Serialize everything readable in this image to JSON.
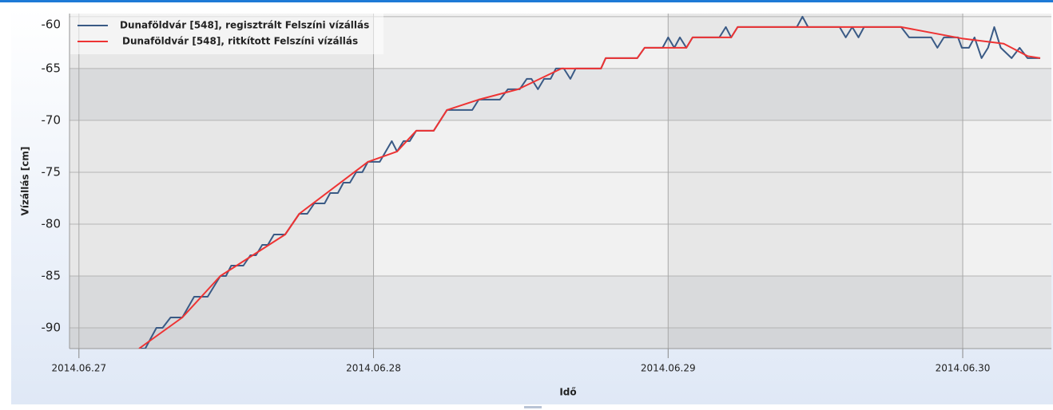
{
  "chart_data": {
    "type": "line",
    "xlabel": "Idő",
    "ylabel": "Vízállás [cm]",
    "xlim": [
      -0.032,
      3.301
    ],
    "ylim": [
      -92,
      -59.7
    ],
    "xticks": [
      {
        "value": 0,
        "label": "2014.06.27"
      },
      {
        "value": 1,
        "label": "2014.06.28"
      },
      {
        "value": 2,
        "label": "2014.06.29"
      },
      {
        "value": 3,
        "label": "2014.06.30"
      }
    ],
    "yticks": [
      -90,
      -85,
      -80,
      -75,
      -70,
      -65,
      -60
    ],
    "grid": true,
    "legend": "upper left",
    "series": [
      {
        "name": "Dunaföldvár [548], regisztrált Felszíni vízállás",
        "color": "#3a5a85",
        "x": [
          0.204,
          0.225,
          0.263,
          0.284,
          0.311,
          0.351,
          0.391,
          0.437,
          0.48,
          0.499,
          0.517,
          0.558,
          0.582,
          0.601,
          0.622,
          0.641,
          0.662,
          0.7,
          0.748,
          0.775,
          0.799,
          0.834,
          0.853,
          0.879,
          0.898,
          0.92,
          0.941,
          0.962,
          0.981,
          1.021,
          1.062,
          1.08,
          1.102,
          1.123,
          1.145,
          1.204,
          1.249,
          1.335,
          1.357,
          1.429,
          1.456,
          1.496,
          1.52,
          1.536,
          1.558,
          1.579,
          1.601,
          1.619,
          1.646,
          1.668,
          1.686,
          1.772,
          1.788,
          1.895,
          1.92,
          1.981,
          2.0,
          2.021,
          2.04,
          2.062,
          2.083,
          2.174,
          2.196,
          2.214,
          2.236,
          2.437,
          2.456,
          2.475,
          2.582,
          2.603,
          2.625,
          2.646,
          2.665,
          2.791,
          2.818,
          2.893,
          2.914,
          2.936,
          2.984,
          2.997,
          3.021,
          3.04,
          3.064,
          3.086,
          3.107,
          3.129,
          3.166,
          3.193,
          3.22,
          3.263
        ],
        "values": [
          -92,
          -92,
          -90,
          -90,
          -89,
          -89,
          -87,
          -87,
          -85,
          -85,
          -84,
          -84,
          -83,
          -83,
          -82,
          -82,
          -81,
          -81,
          -79,
          -79,
          -78,
          -78,
          -77,
          -77,
          -76,
          -76,
          -75,
          -75,
          -74,
          -74,
          -72,
          -73,
          -72,
          -72,
          -71,
          -71,
          -69,
          -69,
          -68,
          -68,
          -67,
          -67,
          -66,
          -66,
          -67,
          -66,
          -66,
          -65,
          -65,
          -66,
          -65,
          -65,
          -64,
          -64,
          -63,
          -63,
          -62,
          -63,
          -62,
          -63,
          -62,
          -62,
          -61,
          -62,
          -61,
          -61,
          -60,
          -61,
          -61,
          -62,
          -61,
          -62,
          -61,
          -61,
          -62,
          -62,
          -63,
          -62,
          -62,
          -63,
          -63,
          -62,
          -64,
          -63,
          -61,
          -63,
          -64,
          -63,
          -64,
          -64
        ]
      },
      {
        "name": "Dunaföldvár [548], ritkított Felszíni vízállás",
        "color": "#ee3333",
        "x": [
          0.204,
          0.351,
          0.48,
          0.7,
          0.748,
          0.981,
          1.08,
          1.145,
          1.204,
          1.249,
          1.357,
          1.491,
          1.638,
          1.772,
          1.788,
          1.895,
          1.92,
          2.062,
          2.083,
          2.214,
          2.236,
          2.791,
          2.997,
          3.139,
          3.22,
          3.263
        ],
        "values": [
          -92,
          -89,
          -85,
          -81,
          -79,
          -74,
          -73,
          -71,
          -71,
          -69,
          -68,
          -67,
          -65,
          -65,
          -64,
          -64,
          -63,
          -63,
          -62,
          -62,
          -61,
          -61,
          -62.1,
          -62.6,
          -63.8,
          -64
        ]
      }
    ]
  }
}
